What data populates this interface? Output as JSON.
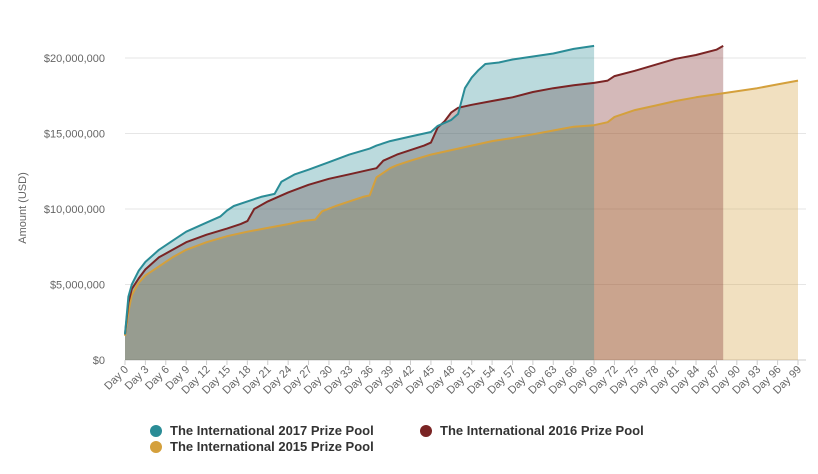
{
  "chart_data": {
    "type": "area",
    "title": "",
    "xlabel": "",
    "ylabel": "Amount (USD)",
    "ylim": [
      0,
      20000000
    ],
    "xlim": [
      0,
      100
    ],
    "y_ticks": [
      "$0",
      "$5,000,000",
      "$10,000,000",
      "$15,000,000",
      "$20,000,000"
    ],
    "x_tick_labels": [
      "Day 0",
      "Day 3",
      "Day 6",
      "Day 9",
      "Day 12",
      "Day 15",
      "Day 18",
      "Day 21",
      "Day 24",
      "Day 27",
      "Day 30",
      "Day 33",
      "Day 36",
      "Day 39",
      "Day 42",
      "Day 45",
      "Day 48",
      "Day 51",
      "Day 54",
      "Day 57",
      "Day 60",
      "Day 63",
      "Day 66",
      "Day 69",
      "Day 72",
      "Day 75",
      "Day 78",
      "Day 81",
      "Day 84",
      "Day 87",
      "Day 90",
      "Day 93",
      "Day 96",
      "Day 99"
    ],
    "grid": true,
    "legend_position": "bottom",
    "series": [
      {
        "name": "The International 2015 Prize Pool",
        "color": "#d4a03c",
        "points": [
          [
            0,
            1600000
          ],
          [
            0.5,
            3200000
          ],
          [
            1,
            4300000
          ],
          [
            2,
            5100000
          ],
          [
            3,
            5600000
          ],
          [
            5,
            6200000
          ],
          [
            7,
            6800000
          ],
          [
            9,
            7300000
          ],
          [
            12,
            7800000
          ],
          [
            15,
            8200000
          ],
          [
            18,
            8500000
          ],
          [
            21,
            8750000
          ],
          [
            24,
            9000000
          ],
          [
            26,
            9200000
          ],
          [
            28,
            9300000
          ],
          [
            29,
            9850000
          ],
          [
            31,
            10200000
          ],
          [
            33,
            10500000
          ],
          [
            35,
            10800000
          ],
          [
            36,
            10900000
          ],
          [
            37,
            12100000
          ],
          [
            38,
            12400000
          ],
          [
            39,
            12700000
          ],
          [
            40,
            12900000
          ],
          [
            42,
            13200000
          ],
          [
            45,
            13600000
          ],
          [
            48,
            13900000
          ],
          [
            51,
            14200000
          ],
          [
            54,
            14500000
          ],
          [
            57,
            14700000
          ],
          [
            60,
            14950000
          ],
          [
            63,
            15200000
          ],
          [
            66,
            15450000
          ],
          [
            69,
            15550000
          ],
          [
            71,
            15750000
          ],
          [
            72,
            16100000
          ],
          [
            75,
            16550000
          ],
          [
            78,
            16850000
          ],
          [
            81,
            17150000
          ],
          [
            84,
            17400000
          ],
          [
            87,
            17600000
          ],
          [
            90,
            17800000
          ],
          [
            93,
            18000000
          ],
          [
            96,
            18250000
          ],
          [
            99,
            18500000
          ]
        ]
      },
      {
        "name": "The International 2016 Prize Pool",
        "color": "#7a2424",
        "points": [
          [
            0,
            1700000
          ],
          [
            0.5,
            3800000
          ],
          [
            1,
            4700000
          ],
          [
            2,
            5400000
          ],
          [
            3,
            6000000
          ],
          [
            5,
            6800000
          ],
          [
            7,
            7300000
          ],
          [
            9,
            7800000
          ],
          [
            12,
            8300000
          ],
          [
            15,
            8700000
          ],
          [
            17,
            9000000
          ],
          [
            18,
            9200000
          ],
          [
            19,
            10000000
          ],
          [
            21,
            10500000
          ],
          [
            24,
            11100000
          ],
          [
            27,
            11600000
          ],
          [
            30,
            12000000
          ],
          [
            33,
            12300000
          ],
          [
            36,
            12600000
          ],
          [
            37,
            12700000
          ],
          [
            38,
            13200000
          ],
          [
            40,
            13600000
          ],
          [
            42,
            13900000
          ],
          [
            44,
            14200000
          ],
          [
            45,
            14400000
          ],
          [
            46,
            15400000
          ],
          [
            47,
            15800000
          ],
          [
            48,
            16400000
          ],
          [
            49,
            16700000
          ],
          [
            51,
            16900000
          ],
          [
            54,
            17150000
          ],
          [
            57,
            17400000
          ],
          [
            60,
            17750000
          ],
          [
            63,
            18000000
          ],
          [
            66,
            18200000
          ],
          [
            69,
            18350000
          ],
          [
            71,
            18500000
          ],
          [
            72,
            18800000
          ],
          [
            75,
            19150000
          ],
          [
            78,
            19550000
          ],
          [
            81,
            19950000
          ],
          [
            84,
            20200000
          ],
          [
            87,
            20550000
          ],
          [
            88,
            20800000
          ]
        ]
      },
      {
        "name": "The International 2017 Prize Pool",
        "color": "#2a8c96",
        "points": [
          [
            0,
            1700000
          ],
          [
            0.5,
            4200000
          ],
          [
            1,
            5000000
          ],
          [
            2,
            5900000
          ],
          [
            3,
            6500000
          ],
          [
            5,
            7300000
          ],
          [
            7,
            7900000
          ],
          [
            9,
            8500000
          ],
          [
            12,
            9100000
          ],
          [
            14,
            9500000
          ],
          [
            15,
            9900000
          ],
          [
            16,
            10200000
          ],
          [
            18,
            10500000
          ],
          [
            20,
            10800000
          ],
          [
            22,
            11000000
          ],
          [
            23,
            11800000
          ],
          [
            25,
            12300000
          ],
          [
            27,
            12600000
          ],
          [
            30,
            13100000
          ],
          [
            33,
            13600000
          ],
          [
            36,
            14000000
          ],
          [
            37,
            14200000
          ],
          [
            39,
            14500000
          ],
          [
            42,
            14800000
          ],
          [
            45,
            15100000
          ],
          [
            46,
            15500000
          ],
          [
            48,
            15900000
          ],
          [
            49,
            16300000
          ],
          [
            50,
            18000000
          ],
          [
            51,
            18700000
          ],
          [
            52,
            19200000
          ],
          [
            53,
            19600000
          ],
          [
            55,
            19700000
          ],
          [
            57,
            19900000
          ],
          [
            60,
            20100000
          ],
          [
            63,
            20300000
          ],
          [
            66,
            20600000
          ],
          [
            69,
            20800000
          ]
        ]
      }
    ]
  }
}
